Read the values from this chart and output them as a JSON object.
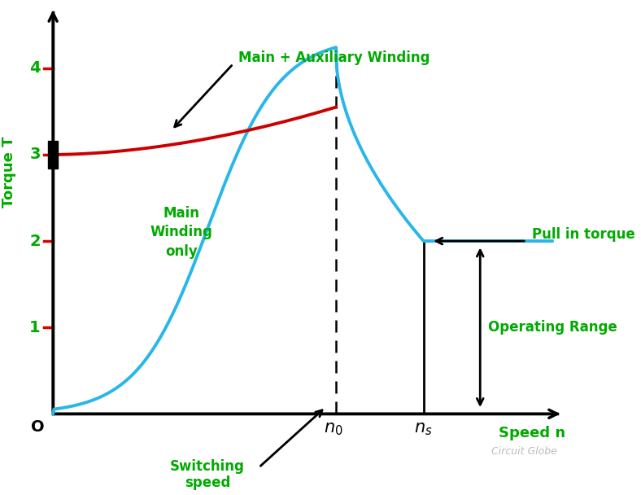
{
  "background_color": "#ffffff",
  "xlabel": "Speed n",
  "ylabel": "Torque T",
  "green_color": "#00aa00",
  "red_tick_color": "#dd0000",
  "blue_curve_color": "#29b6e8",
  "red_curve_color": "#cc0000",
  "black_color": "#000000",
  "watermark": "Circuit Globe",
  "watermark_color": "#bbbbbb",
  "yticks": [
    1,
    2,
    3,
    4
  ],
  "n0_x": 5.5,
  "ns_x": 7.2,
  "pull_in_y": 2.0,
  "blue_peak_y": 4.15,
  "red_start_y": 3.0,
  "red_end_y": 3.55,
  "xmax": 10.0,
  "ymax": 4.75,
  "xmin": -0.5,
  "ymin": -0.6
}
